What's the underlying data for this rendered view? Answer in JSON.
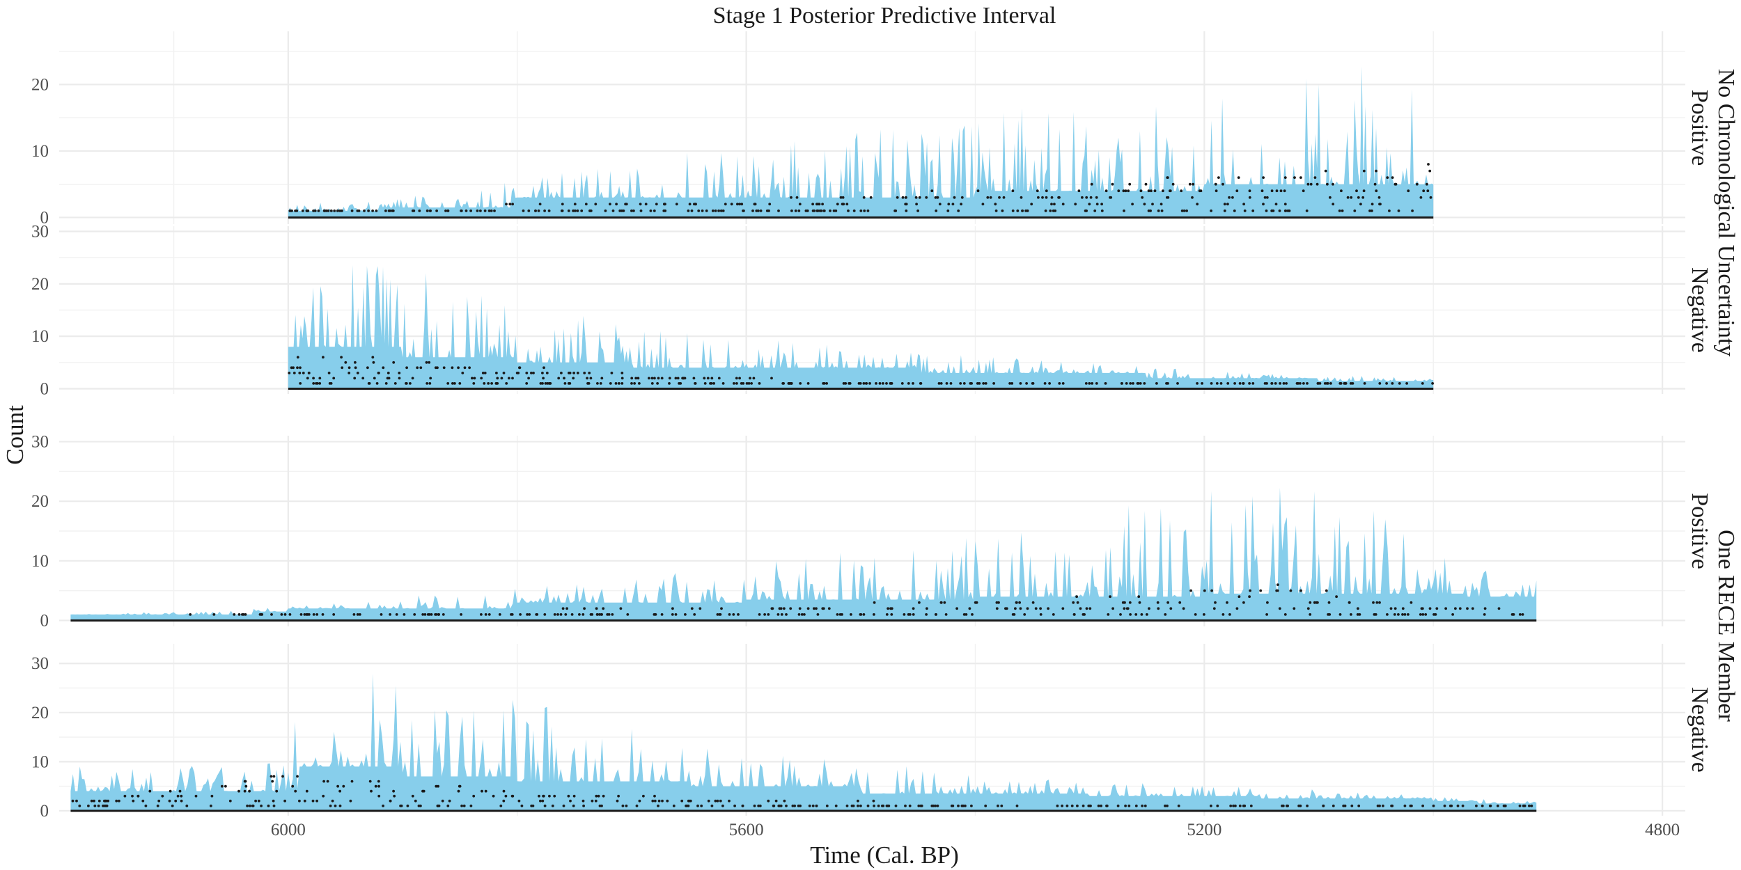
{
  "chart_data": {
    "type": "area",
    "title": "Stage 1 Posterior Predictive Interval",
    "xlabel": "Time (Cal. BP)",
    "ylabel": "Count",
    "x_reversed": true,
    "xlim": [
      6200,
      4780
    ],
    "x_ticks": [
      6000,
      5600,
      5200,
      4800
    ],
    "grid": true,
    "legend": "none",
    "colors": {
      "interval": "#87ceeb",
      "observed": "#1a1a1a",
      "grid": "#ebebeb"
    },
    "row_strips": [
      "No Chronological Uncertainty",
      "One RECE Member"
    ],
    "panels": [
      {
        "strip": "Positive",
        "ylim": [
          -1,
          28
        ],
        "y_ticks": [
          0,
          10,
          20
        ],
        "x_range": [
          6000,
          5000
        ],
        "steps": [
          [
            6000,
            1
          ],
          [
            5920,
            1.5
          ],
          [
            5800,
            3
          ],
          [
            5600,
            3
          ],
          [
            5400,
            4
          ],
          [
            5200,
            5
          ],
          [
            5000,
            5
          ]
        ],
        "peaks": [
          [
            6000,
            2
          ],
          [
            5850,
            4
          ],
          [
            5700,
            9
          ],
          [
            5600,
            11
          ],
          [
            5400,
            16
          ],
          [
            5200,
            20
          ],
          [
            5050,
            24
          ],
          [
            5000,
            18
          ]
        ],
        "obs_max": [
          [
            6000,
            1
          ],
          [
            5700,
            2
          ],
          [
            5400,
            4
          ],
          [
            5200,
            6
          ],
          [
            5000,
            8
          ]
        ]
      },
      {
        "strip": "Negative",
        "ylim": [
          -1,
          31
        ],
        "y_ticks": [
          0,
          10,
          20,
          30
        ],
        "x_range": [
          6000,
          5000
        ],
        "steps": [
          [
            6000,
            8
          ],
          [
            5900,
            6
          ],
          [
            5800,
            5
          ],
          [
            5700,
            4
          ],
          [
            5450,
            3
          ],
          [
            5250,
            2
          ],
          [
            5100,
            1.5
          ],
          [
            5000,
            1
          ]
        ],
        "peaks": [
          [
            6000,
            25
          ],
          [
            5900,
            24
          ],
          [
            5800,
            18
          ],
          [
            5700,
            12
          ],
          [
            5500,
            8
          ],
          [
            5300,
            5
          ],
          [
            5150,
            3
          ],
          [
            5000,
            2
          ]
        ],
        "obs_max": [
          [
            6000,
            7
          ],
          [
            5800,
            4
          ],
          [
            5600,
            2
          ],
          [
            5400,
            1
          ],
          [
            5000,
            1
          ]
        ]
      },
      {
        "strip": "Positive",
        "ylim": [
          -1,
          31
        ],
        "y_ticks": [
          0,
          10,
          20,
          30
        ],
        "x_range": [
          6190,
          4910
        ],
        "steps": [
          [
            6190,
            1
          ],
          [
            6030,
            1.5
          ],
          [
            6000,
            2
          ],
          [
            5800,
            3
          ],
          [
            5600,
            3.5
          ],
          [
            5400,
            4
          ],
          [
            5200,
            4.5
          ],
          [
            5050,
            4.5
          ],
          [
            4970,
            4
          ],
          [
            4910,
            4
          ]
        ],
        "peaks": [
          [
            6190,
            1
          ],
          [
            6030,
            2
          ],
          [
            5900,
            4
          ],
          [
            5700,
            7
          ],
          [
            5500,
            12
          ],
          [
            5300,
            18
          ],
          [
            5150,
            24
          ],
          [
            5050,
            20
          ],
          [
            4960,
            9
          ],
          [
            4920,
            8
          ]
        ],
        "obs_max": [
          [
            6190,
            0
          ],
          [
            6000,
            1
          ],
          [
            5600,
            2
          ],
          [
            5300,
            4
          ],
          [
            5150,
            6
          ],
          [
            5000,
            3
          ],
          [
            4910,
            1
          ]
        ]
      },
      {
        "strip": "Negative",
        "ylim": [
          -1,
          34
        ],
        "y_ticks": [
          0,
          10,
          20,
          30
        ],
        "x_range": [
          6190,
          4910
        ],
        "steps": [
          [
            6190,
            4
          ],
          [
            6000,
            4.5
          ],
          [
            5990,
            9
          ],
          [
            5900,
            7
          ],
          [
            5800,
            6
          ],
          [
            5650,
            5
          ],
          [
            5500,
            3.5
          ],
          [
            5300,
            3
          ],
          [
            5150,
            2.5
          ],
          [
            5000,
            2
          ],
          [
            4960,
            1.5
          ],
          [
            4910,
            1
          ]
        ],
        "peaks": [
          [
            6190,
            9
          ],
          [
            6000,
            10
          ],
          [
            5990,
            30
          ],
          [
            5900,
            28
          ],
          [
            5800,
            24
          ],
          [
            5650,
            14
          ],
          [
            5500,
            10
          ],
          [
            5300,
            6
          ],
          [
            5150,
            5
          ],
          [
            5000,
            3
          ],
          [
            4910,
            2
          ]
        ],
        "obs_max": [
          [
            6190,
            2
          ],
          [
            6000,
            8
          ],
          [
            5800,
            4
          ],
          [
            5600,
            2
          ],
          [
            5300,
            1
          ],
          [
            4910,
            1
          ]
        ]
      }
    ]
  }
}
